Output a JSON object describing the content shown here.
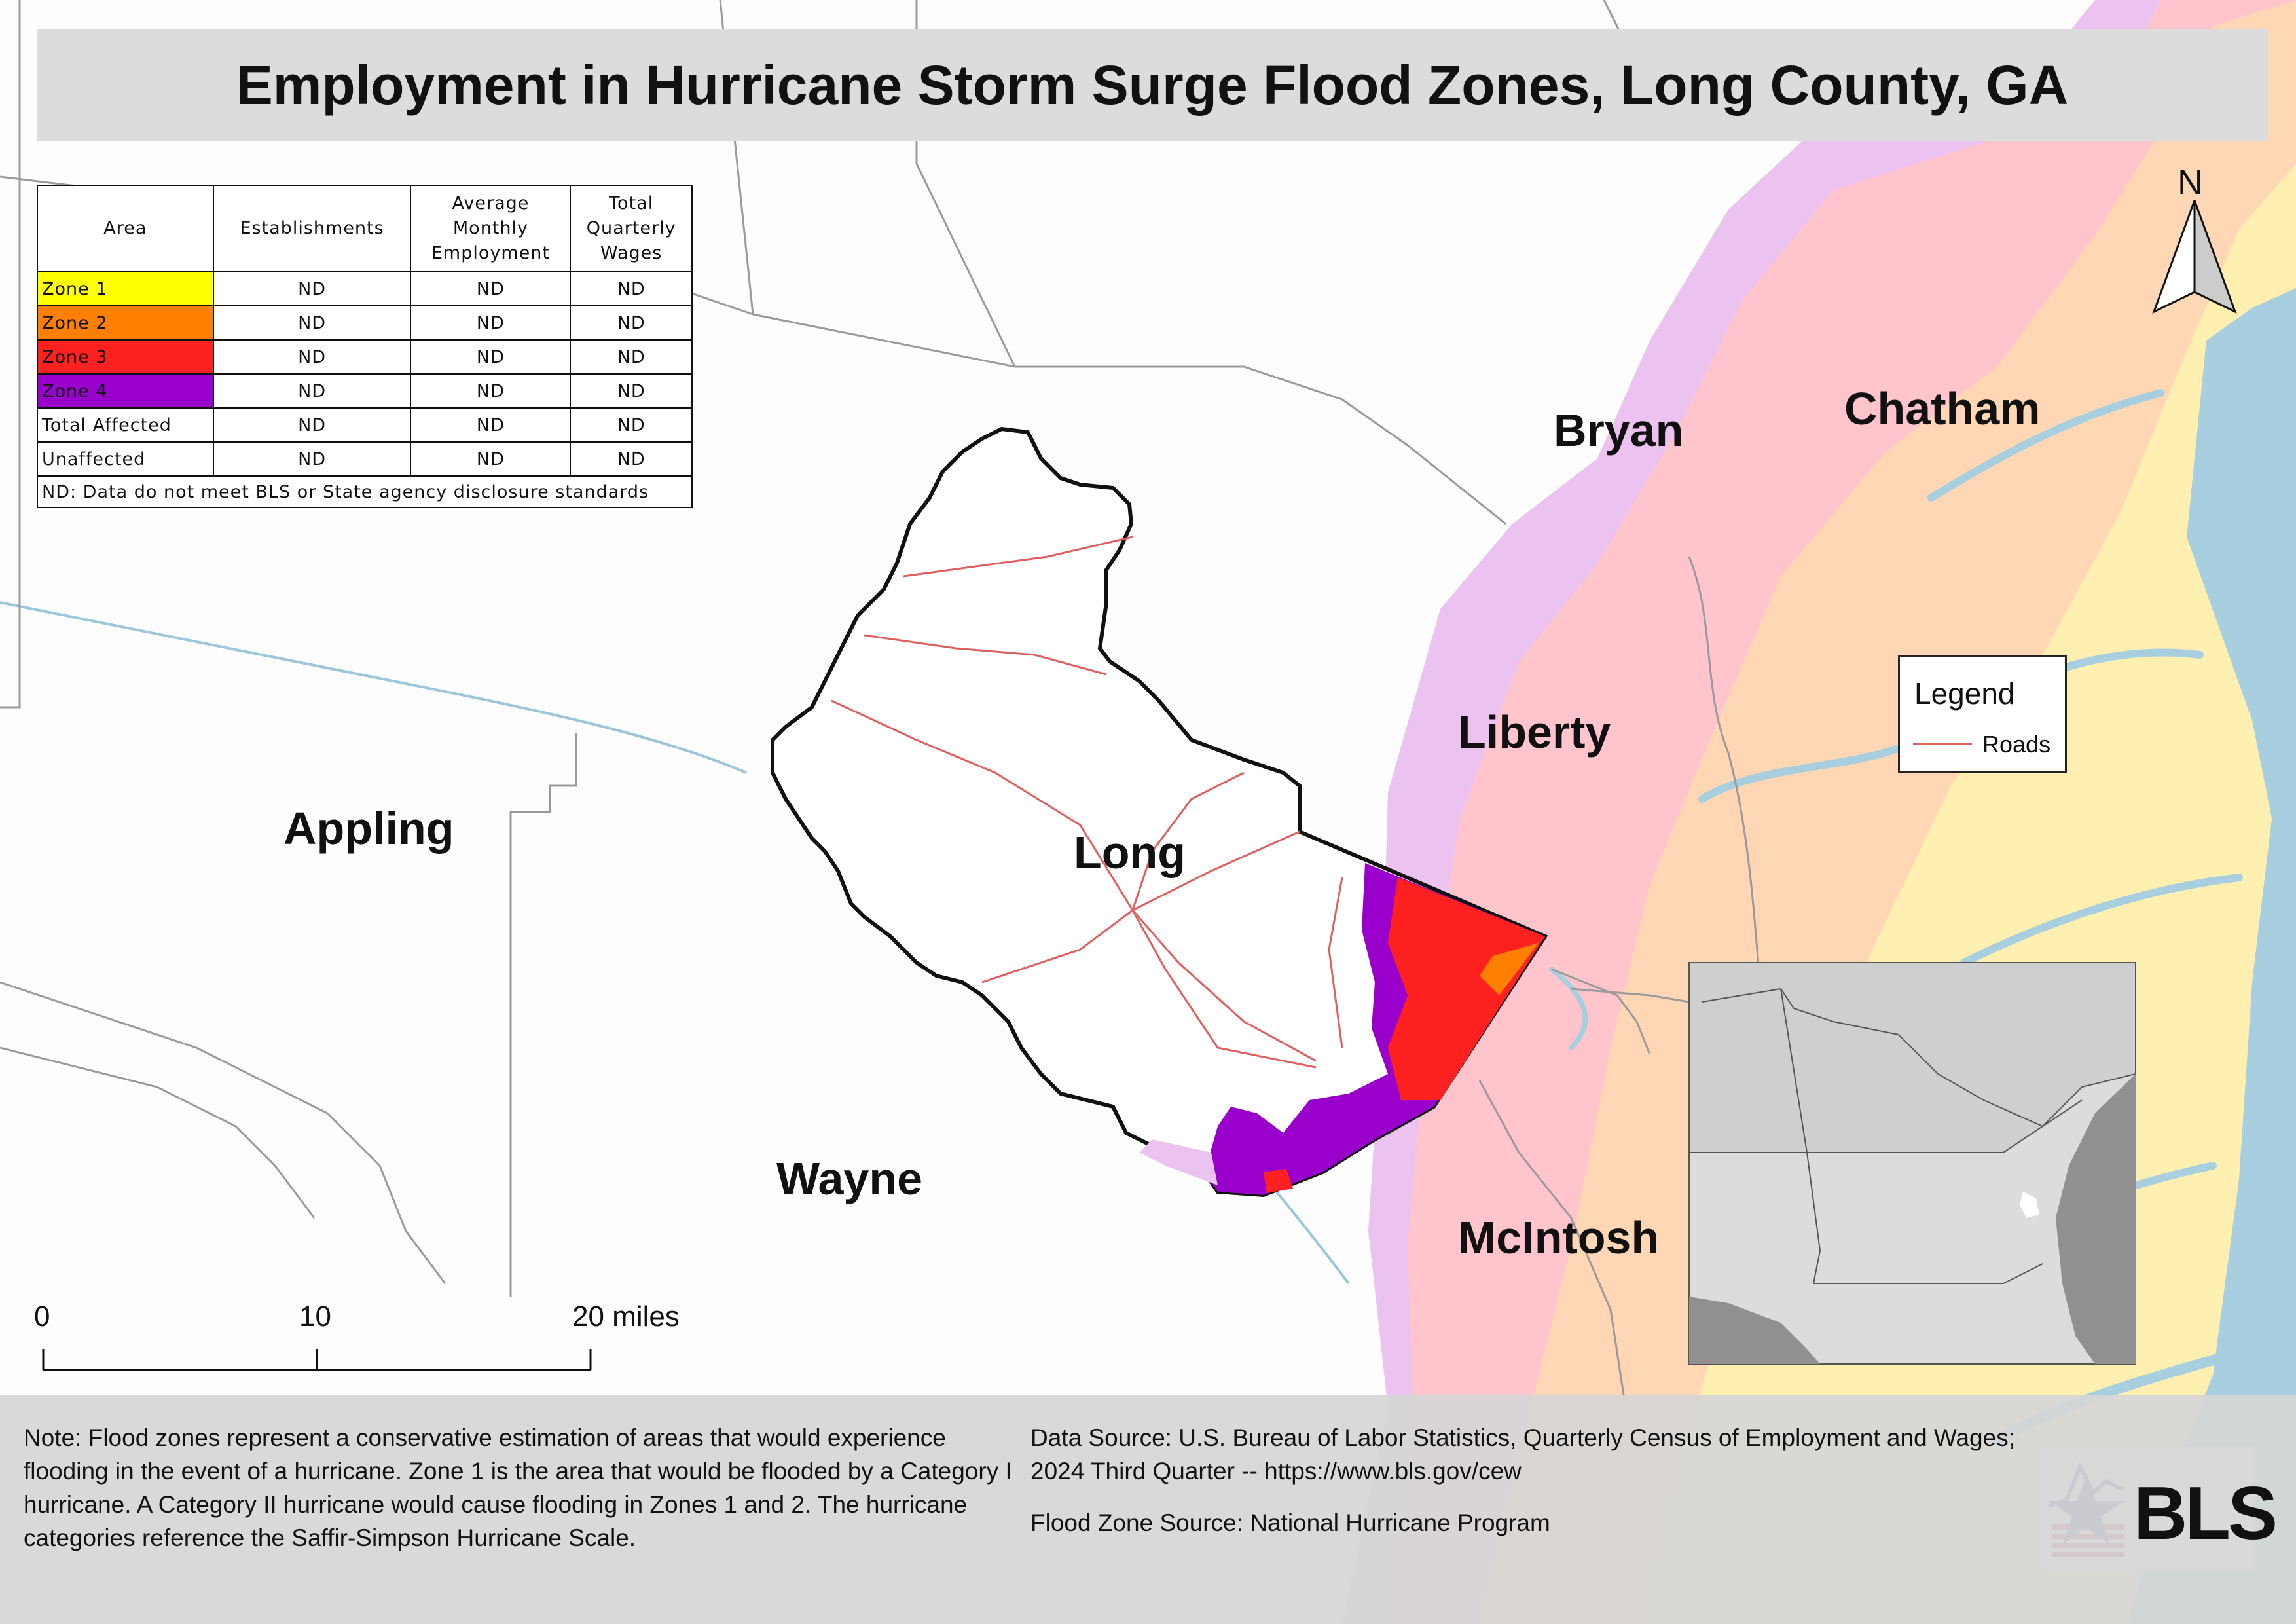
{
  "title": "Employment in Hurricane Storm Surge Flood Zones, Long County, GA",
  "counties": {
    "appling": "Appling",
    "long": "Long",
    "wayne": "Wayne",
    "bryan": "Bryan",
    "liberty": "Liberty",
    "mcintosh": "McIntosh",
    "chatham": "Chatham"
  },
  "table": {
    "headers": [
      "Area",
      "Establishments",
      "Average Monthly Employment",
      "Total Quarterly Wages"
    ],
    "rows": [
      {
        "area": "Zone 1",
        "color": "#ffff00",
        "establishments": "ND",
        "employment": "ND",
        "wages": "ND"
      },
      {
        "area": "Zone 2",
        "color": "#ff8000",
        "establishments": "ND",
        "employment": "ND",
        "wages": "ND"
      },
      {
        "area": "Zone 3",
        "color": "#ff2020",
        "establishments": "ND",
        "employment": "ND",
        "wages": "ND"
      },
      {
        "area": "Zone 4",
        "color": "#9900cc",
        "establishments": "ND",
        "employment": "ND",
        "wages": "ND"
      },
      {
        "area": "Total Affected",
        "color": "#ffffff",
        "establishments": "ND",
        "employment": "ND",
        "wages": "ND"
      },
      {
        "area": "Unaffected",
        "color": "#ffffff",
        "establishments": "ND",
        "employment": "ND",
        "wages": "ND"
      }
    ],
    "footnote": "ND: Data do not meet BLS or State agency disclosure standards"
  },
  "legend": {
    "title": "Legend",
    "roads_label": "Roads",
    "roads_color": "#e06060"
  },
  "scale_bar": {
    "ticks": [
      "0",
      "10",
      "20 miles"
    ]
  },
  "north_arrow": {
    "label": "N",
    "icon": "north-arrow-icon"
  },
  "notes": {
    "flood_note": "Note: Flood zones represent a conservative estimation of areas that would experience flooding in the event of a hurricane. Zone 1 is the area that would be flooded by a Category I hurricane. A Category II hurricane would cause flooding in Zones 1 and 2. The hurricane categories reference the Saffir-Simpson Hurricane Scale.",
    "data_source": "Data Source: U.S. Bureau of Labor Statistics, Quarterly Census of Employment and Wages; 2024 Third Quarter -- https://www.bls.gov/cew",
    "flood_source": "Flood Zone Source: National Hurricane Program"
  },
  "logo": {
    "text": "BLS"
  },
  "colors": {
    "zone1": "#ffff00",
    "zone2": "#ff8000",
    "zone3": "#ff2020",
    "zone4": "#9900cc",
    "water": "#a8cfe0",
    "zone1_map": "#fffbb0",
    "zone2_map": "#ffd8a8",
    "zone3_map": "#ffc0c8",
    "zone4_map": "#ebc2f0"
  }
}
